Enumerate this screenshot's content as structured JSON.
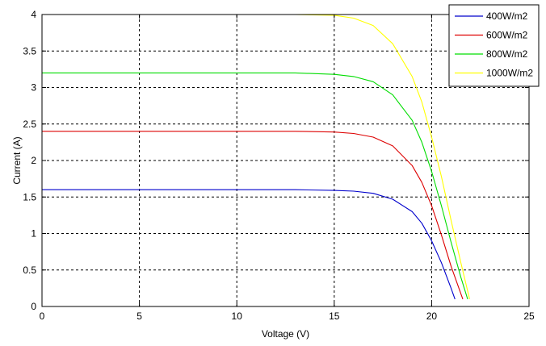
{
  "chart_data": {
    "type": "line",
    "title": "",
    "xlabel": "Voltage (V)",
    "ylabel": "Current (A)",
    "xlim": [
      0,
      25
    ],
    "ylim": [
      0,
      4
    ],
    "xticks": [
      0,
      5,
      10,
      15,
      20,
      25
    ],
    "yticks": [
      0,
      0.5,
      1,
      1.5,
      2,
      2.5,
      3,
      3.5,
      4
    ],
    "xtick_labels": [
      "0",
      "5",
      "10",
      "15",
      "20",
      "25"
    ],
    "ytick_labels": [
      "0",
      "0.5",
      "1",
      "1.5",
      "2",
      "2.5",
      "3",
      "3.5",
      "4"
    ],
    "grid": true,
    "legend_position": "top-right",
    "series": [
      {
        "name": "400W/m2",
        "color": "#0000cc",
        "x": [
          0,
          13,
          15,
          16,
          17,
          18,
          19,
          19.5,
          20,
          20.5,
          21,
          21.2
        ],
        "y": [
          1.6,
          1.6,
          1.59,
          1.58,
          1.55,
          1.47,
          1.3,
          1.14,
          0.9,
          0.6,
          0.25,
          0.1
        ]
      },
      {
        "name": "600W/m2",
        "color": "#dd0000",
        "x": [
          0,
          13,
          15,
          16,
          17,
          18,
          19,
          19.5,
          20,
          20.5,
          21,
          21.6
        ],
        "y": [
          2.4,
          2.4,
          2.39,
          2.37,
          2.32,
          2.2,
          1.93,
          1.7,
          1.38,
          0.98,
          0.55,
          0.1
        ]
      },
      {
        "name": "800W/m2",
        "color": "#00dd00",
        "x": [
          0,
          13,
          15,
          16,
          17,
          18,
          19,
          19.5,
          20,
          20.5,
          21,
          21.5,
          21.85
        ],
        "y": [
          3.2,
          3.2,
          3.18,
          3.15,
          3.08,
          2.9,
          2.55,
          2.25,
          1.85,
          1.38,
          0.88,
          0.4,
          0.1
        ]
      },
      {
        "name": "1000W/m2",
        "color": "#ffff00",
        "x": [
          0,
          13,
          15,
          16,
          17,
          18,
          19,
          19.5,
          20,
          20.5,
          21,
          21.5,
          21.95
        ],
        "y": [
          4.0,
          4.0,
          3.99,
          3.95,
          3.85,
          3.6,
          3.15,
          2.8,
          2.32,
          1.78,
          1.18,
          0.6,
          0.1
        ]
      }
    ]
  }
}
